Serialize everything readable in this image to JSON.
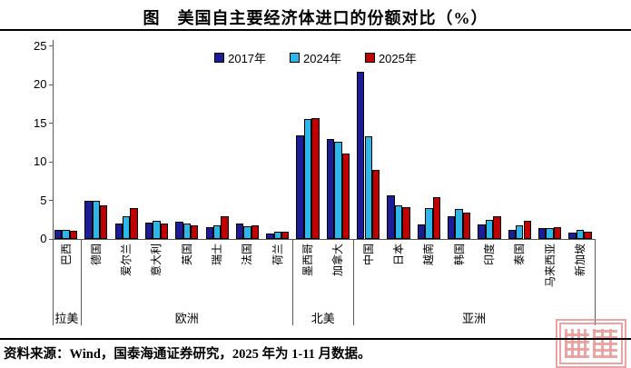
{
  "chart_data": {
    "type": "bar",
    "title": "图　美国自主要经济体进口的份额对比（%）",
    "categories": [
      "巴西",
      "德国",
      "爱尔兰",
      "意大利",
      "英国",
      "瑞士",
      "法国",
      "荷兰",
      "墨西哥",
      "加拿大",
      "中国",
      "日本",
      "越南",
      "韩国",
      "印度",
      "泰国",
      "马来西亚",
      "新加坡"
    ],
    "series": [
      {
        "name": "2017年",
        "color": "#1c1c96",
        "values": [
          1.2,
          5.0,
          2.0,
          2.1,
          2.2,
          1.5,
          2.0,
          0.7,
          13.4,
          12.9,
          21.6,
          5.7,
          1.9,
          2.9,
          1.9,
          1.2,
          1.4,
          0.8
        ]
      },
      {
        "name": "2024年",
        "color": "#2fb6e8",
        "values": [
          1.2,
          4.9,
          3.0,
          2.3,
          2.0,
          1.8,
          1.6,
          0.9,
          15.5,
          12.6,
          13.3,
          4.3,
          4.0,
          3.9,
          2.5,
          1.8,
          1.4,
          1.2
        ]
      },
      {
        "name": "2025年",
        "color": "#c00000",
        "values": [
          1.1,
          4.4,
          4.0,
          2.0,
          1.8,
          3.0,
          1.8,
          0.9,
          15.7,
          11.1,
          9.0,
          4.1,
          5.4,
          3.4,
          2.9,
          2.4,
          1.5,
          1.0
        ]
      }
    ],
    "region_groups": [
      {
        "label": "拉美",
        "span": [
          0,
          0
        ]
      },
      {
        "label": "欧洲",
        "span": [
          1,
          7
        ]
      },
      {
        "label": "北美",
        "span": [
          8,
          9
        ]
      },
      {
        "label": "亚洲",
        "span": [
          10,
          17
        ]
      }
    ],
    "ylabel": "",
    "xlabel": "",
    "ylim": [
      0,
      25
    ],
    "yticks": [
      0,
      5,
      10,
      15,
      20,
      25
    ],
    "grid": false,
    "legend_position": "top-center"
  },
  "footer": {
    "source_text": "资料来源：Wind，国泰海通证券研究，2025 年为 1-11 月数据。"
  },
  "watermark": {
    "kind": "red-seal-stamp",
    "color": "#e78c8c"
  }
}
